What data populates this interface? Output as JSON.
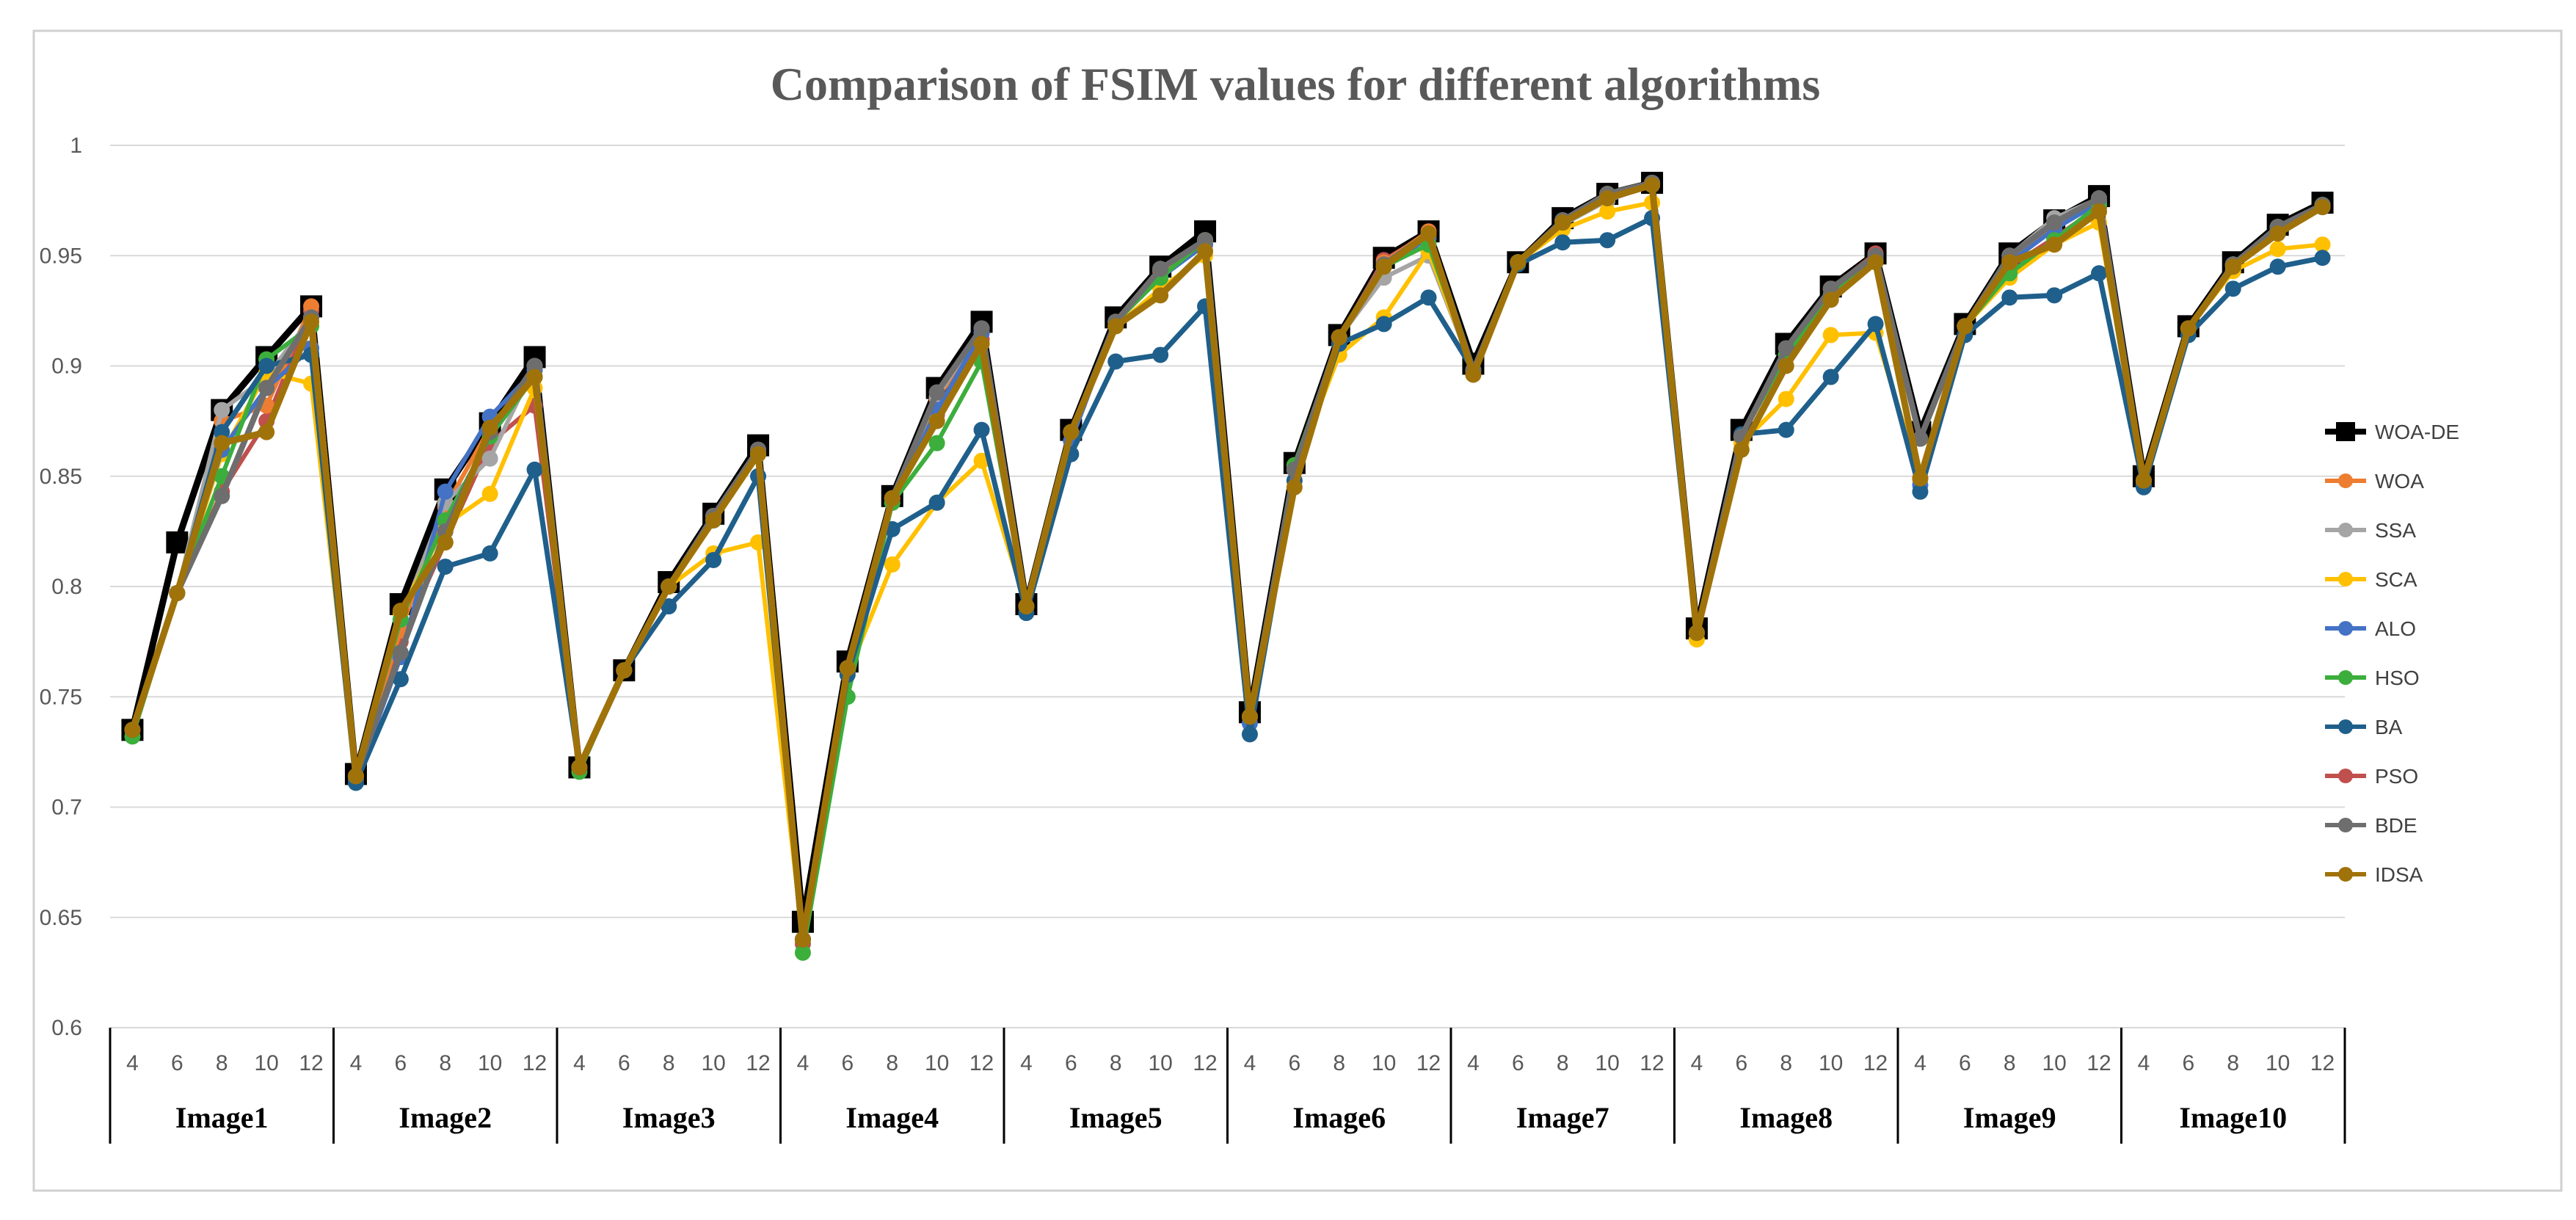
{
  "chart_data": {
    "type": "line",
    "title": "Comparison of FSIM values for different algorithms",
    "xlabel": "",
    "ylabel": "",
    "ylim": [
      0.6,
      1.0
    ],
    "yticks": [
      "0.6",
      "0.65",
      "0.7",
      "0.75",
      "0.8",
      "0.85",
      "0.9",
      "0.95",
      "1"
    ],
    "grid": true,
    "legend_position": "right",
    "groups": [
      "Image1",
      "Image2",
      "Image3",
      "Image4",
      "Image5",
      "Image6",
      "Image7",
      "Image8",
      "Image9",
      "Image10"
    ],
    "thresholds": [
      "4",
      "6",
      "8",
      "10",
      "12"
    ],
    "series": [
      {
        "name": "PSO",
        "color": "#c0504d",
        "values": [
          0.735,
          0.797,
          0.843,
          0.875,
          0.925,
          0.714,
          0.775,
          0.82,
          0.865,
          0.882,
          0.718,
          0.762,
          0.8,
          0.83,
          0.86,
          0.638,
          0.763,
          0.838,
          0.878,
          0.912,
          0.791,
          0.87,
          0.92,
          0.94,
          0.957,
          0.741,
          0.853,
          0.913,
          0.948,
          0.96,
          0.898,
          0.947,
          0.966,
          0.978,
          0.983,
          0.779,
          0.868,
          0.905,
          0.935,
          0.951,
          0.849,
          0.918,
          0.945,
          0.958,
          0.972,
          0.848,
          0.917,
          0.946,
          0.962,
          0.972
        ]
      },
      {
        "name": "WOA",
        "color": "#ed7d31",
        "values": [
          0.735,
          0.797,
          0.875,
          0.882,
          0.927,
          0.714,
          0.78,
          0.836,
          0.872,
          0.895,
          0.718,
          0.762,
          0.8,
          0.832,
          0.862,
          0.64,
          0.763,
          0.84,
          0.885,
          0.915,
          0.791,
          0.87,
          0.92,
          0.943,
          0.957,
          0.741,
          0.855,
          0.913,
          0.947,
          0.961,
          0.898,
          0.947,
          0.966,
          0.978,
          0.983,
          0.779,
          0.868,
          0.905,
          0.935,
          0.95,
          0.849,
          0.918,
          0.948,
          0.962,
          0.975,
          0.848,
          0.917,
          0.946,
          0.963,
          0.973
        ]
      },
      {
        "name": "SSA",
        "color": "#a5a5a5",
        "values": [
          0.735,
          0.797,
          0.88,
          0.895,
          0.922,
          0.714,
          0.785,
          0.838,
          0.858,
          0.9,
          0.718,
          0.762,
          0.8,
          0.832,
          0.862,
          0.64,
          0.763,
          0.84,
          0.886,
          0.917,
          0.791,
          0.87,
          0.92,
          0.944,
          0.957,
          0.741,
          0.853,
          0.913,
          0.94,
          0.95,
          0.898,
          0.947,
          0.964,
          0.975,
          0.982,
          0.779,
          0.868,
          0.908,
          0.93,
          0.948,
          0.849,
          0.918,
          0.95,
          0.967,
          0.976,
          0.848,
          0.917,
          0.946,
          0.963,
          0.973
        ]
      },
      {
        "name": "SCA",
        "color": "#ffc000",
        "values": [
          0.735,
          0.797,
          0.86,
          0.897,
          0.892,
          0.714,
          0.788,
          0.828,
          0.842,
          0.89,
          0.718,
          0.762,
          0.8,
          0.815,
          0.82,
          0.64,
          0.76,
          0.81,
          0.838,
          0.857,
          0.791,
          0.87,
          0.918,
          0.935,
          0.95,
          0.741,
          0.853,
          0.905,
          0.922,
          0.952,
          0.898,
          0.947,
          0.962,
          0.97,
          0.974,
          0.776,
          0.865,
          0.885,
          0.914,
          0.915,
          0.849,
          0.918,
          0.94,
          0.955,
          0.965,
          0.848,
          0.917,
          0.943,
          0.953,
          0.955
        ]
      },
      {
        "name": "ALO",
        "color": "#4472c4",
        "values": [
          0.735,
          0.797,
          0.862,
          0.89,
          0.908,
          0.712,
          0.768,
          0.843,
          0.877,
          0.898,
          0.718,
          0.762,
          0.8,
          0.83,
          0.86,
          0.64,
          0.763,
          0.838,
          0.88,
          0.915,
          0.791,
          0.866,
          0.92,
          0.94,
          0.955,
          0.738,
          0.853,
          0.913,
          0.945,
          0.958,
          0.898,
          0.947,
          0.965,
          0.977,
          0.983,
          0.779,
          0.868,
          0.905,
          0.932,
          0.95,
          0.846,
          0.918,
          0.947,
          0.962,
          0.974,
          0.846,
          0.917,
          0.945,
          0.962,
          0.972
        ]
      },
      {
        "name": "HSO",
        "color": "#3cae3c",
        "values": [
          0.732,
          0.797,
          0.85,
          0.903,
          0.918,
          0.714,
          0.785,
          0.83,
          0.868,
          0.895,
          0.716,
          0.762,
          0.8,
          0.83,
          0.86,
          0.634,
          0.75,
          0.838,
          0.865,
          0.902,
          0.791,
          0.87,
          0.92,
          0.94,
          0.957,
          0.741,
          0.855,
          0.913,
          0.945,
          0.955,
          0.898,
          0.947,
          0.966,
          0.978,
          0.983,
          0.779,
          0.868,
          0.905,
          0.932,
          0.948,
          0.849,
          0.918,
          0.942,
          0.957,
          0.973,
          0.848,
          0.917,
          0.946,
          0.963,
          0.973
        ]
      },
      {
        "name": "BA",
        "color": "#1f5f8b",
        "values": [
          0.735,
          0.797,
          0.87,
          0.9,
          0.905,
          0.711,
          0.758,
          0.809,
          0.815,
          0.853,
          0.718,
          0.762,
          0.791,
          0.812,
          0.85,
          0.64,
          0.76,
          0.826,
          0.838,
          0.871,
          0.788,
          0.86,
          0.902,
          0.905,
          0.927,
          0.733,
          0.848,
          0.91,
          0.919,
          0.931,
          0.898,
          0.946,
          0.956,
          0.957,
          0.967,
          0.779,
          0.869,
          0.871,
          0.895,
          0.919,
          0.843,
          0.914,
          0.931,
          0.932,
          0.942,
          0.845,
          0.914,
          0.935,
          0.945,
          0.949
        ]
      },
      {
        "name": "BDE",
        "color": "#6e6e6e",
        "values": [
          0.735,
          0.797,
          0.841,
          0.89,
          0.922,
          0.714,
          0.77,
          0.825,
          0.87,
          0.9,
          0.718,
          0.762,
          0.8,
          0.832,
          0.862,
          0.64,
          0.763,
          0.84,
          0.888,
          0.917,
          0.791,
          0.87,
          0.92,
          0.944,
          0.957,
          0.741,
          0.853,
          0.913,
          0.946,
          0.96,
          0.898,
          0.947,
          0.966,
          0.978,
          0.983,
          0.779,
          0.868,
          0.908,
          0.935,
          0.95,
          0.867,
          0.918,
          0.95,
          0.965,
          0.976,
          0.848,
          0.917,
          0.946,
          0.963,
          0.973
        ]
      },
      {
        "name": "IDSA",
        "color": "#a0730a",
        "values": [
          0.735,
          0.797,
          0.865,
          0.87,
          0.92,
          0.714,
          0.789,
          0.82,
          0.872,
          0.895,
          0.718,
          0.762,
          0.8,
          0.83,
          0.86,
          0.64,
          0.763,
          0.84,
          0.875,
          0.91,
          0.791,
          0.87,
          0.918,
          0.932,
          0.952,
          0.741,
          0.845,
          0.913,
          0.945,
          0.96,
          0.896,
          0.947,
          0.965,
          0.976,
          0.982,
          0.779,
          0.862,
          0.9,
          0.93,
          0.947,
          0.849,
          0.918,
          0.947,
          0.955,
          0.97,
          0.848,
          0.917,
          0.945,
          0.96,
          0.972
        ]
      },
      {
        "name": "WOA-DE",
        "color": "#000000",
        "values": [
          0.735,
          0.82,
          0.88,
          0.904,
          0.927,
          0.715,
          0.792,
          0.844,
          0.874,
          0.904,
          0.718,
          0.762,
          0.802,
          0.833,
          0.864,
          0.648,
          0.766,
          0.841,
          0.89,
          0.92,
          0.792,
          0.871,
          0.922,
          0.945,
          0.961,
          0.743,
          0.856,
          0.914,
          0.949,
          0.961,
          0.901,
          0.947,
          0.967,
          0.978,
          0.983,
          0.781,
          0.871,
          0.91,
          0.936,
          0.951,
          0.87,
          0.919,
          0.951,
          0.966,
          0.977,
          0.85,
          0.918,
          0.947,
          0.964,
          0.974
        ]
      }
    ],
    "legend": [
      "WOA-DE",
      "WOA",
      "SSA",
      "SCA",
      "ALO",
      "HSO",
      "BA",
      "PSO",
      "BDE",
      "IDSA"
    ]
  }
}
